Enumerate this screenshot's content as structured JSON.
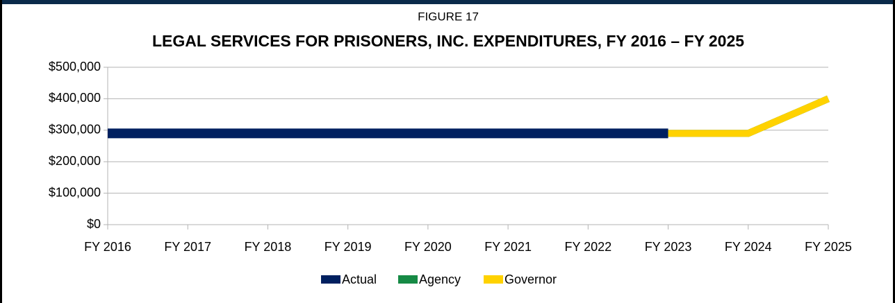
{
  "chart_data": {
    "type": "line",
    "supertitle": "FIGURE 17",
    "title": "LEGAL SERVICES FOR PRISONERS, INC. EXPENDITURES, FY 2016 – FY 2025",
    "categories": [
      "FY 2016",
      "FY 2017",
      "FY 2018",
      "FY 2019",
      "FY 2020",
      "FY 2021",
      "FY 2022",
      "FY 2023",
      "FY 2024",
      "FY 2025"
    ],
    "series": [
      {
        "name": "Actual",
        "color": "#002060",
        "values": [
          290000,
          290000,
          290000,
          290000,
          290000,
          290000,
          290000,
          290000,
          null,
          null
        ]
      },
      {
        "name": "Agency",
        "color": "#168a45",
        "values": [
          null,
          null,
          null,
          null,
          null,
          null,
          null,
          290000,
          290000,
          400000
        ]
      },
      {
        "name": "Governor",
        "color": "#ffd200",
        "values": [
          null,
          null,
          null,
          null,
          null,
          null,
          null,
          290000,
          290000,
          400000
        ]
      }
    ],
    "ylim": [
      0,
      500000
    ],
    "yticks": [
      {
        "value": 0,
        "label": "$0"
      },
      {
        "value": 100000,
        "label": "$100,000"
      },
      {
        "value": 200000,
        "label": "$200,000"
      },
      {
        "value": 300000,
        "label": "$300,000"
      },
      {
        "value": 400000,
        "label": "$400,000"
      },
      {
        "value": 500000,
        "label": "$500,000"
      }
    ],
    "grid": true,
    "legend": "bottom"
  }
}
